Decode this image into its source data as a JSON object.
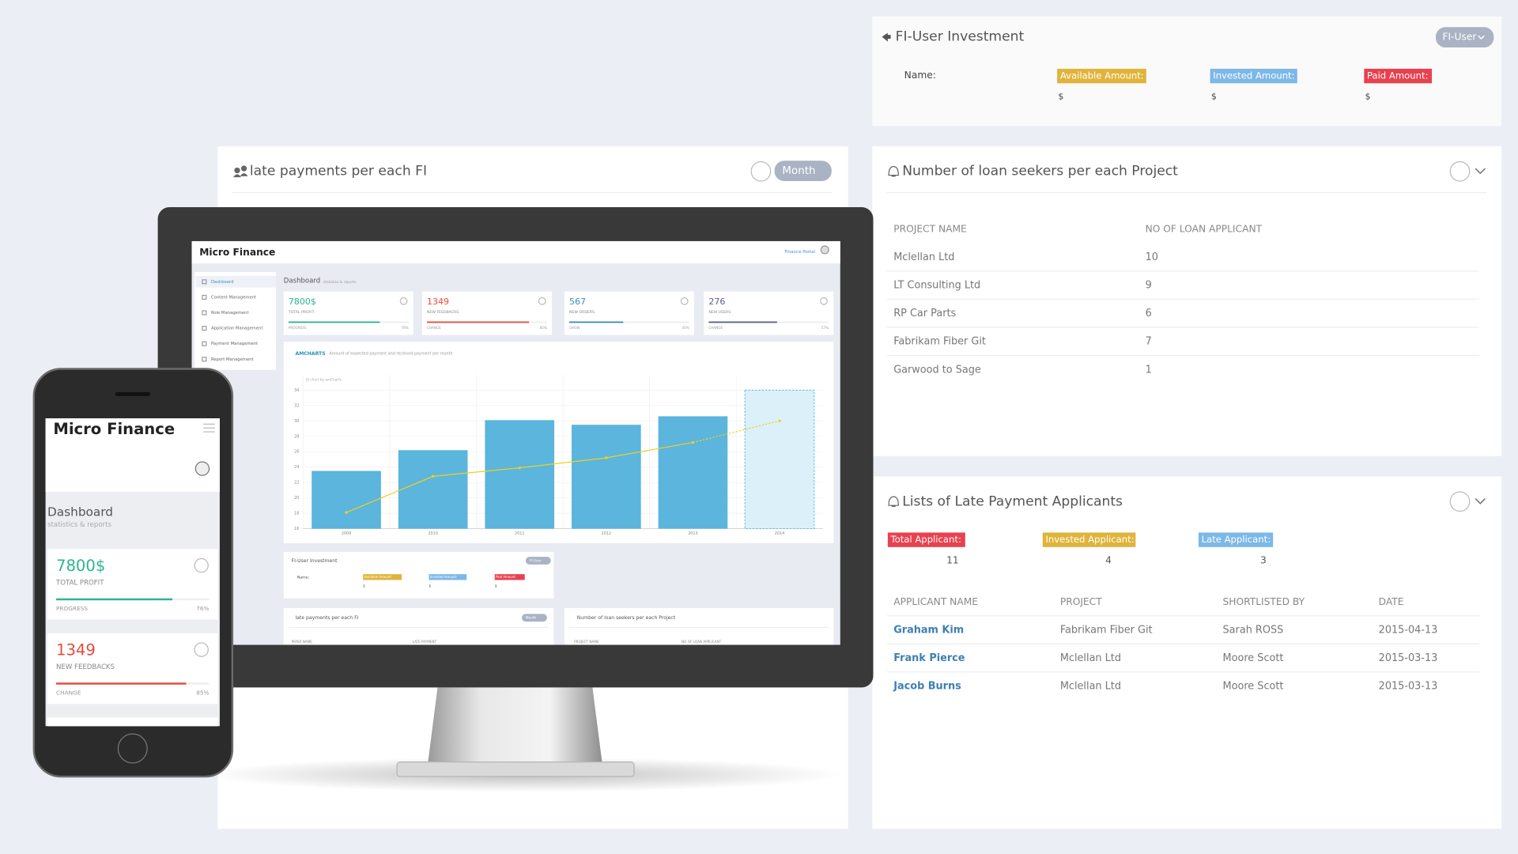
{
  "fi_investment": {
    "title": "FI-User Investment",
    "button": "FI-User",
    "name_label": "Name:",
    "amounts": [
      {
        "label": "Available Amount:",
        "value": "$"
      },
      {
        "label": "Invested Amount:",
        "value": "$"
      },
      {
        "label": "Paid Amount:",
        "value": "$"
      }
    ]
  },
  "late_payments": {
    "title": "late payments per each FI",
    "button": "Month",
    "columns": [
      "PAYER NAME",
      "LATE PAYMENT"
    ]
  },
  "loan_seekers": {
    "title": "Number of loan seekers per each Project",
    "columns": [
      "PROJECT NAME",
      "NO OF LOAN APPLICANT"
    ],
    "rows": [
      [
        "Mclellan Ltd",
        "10"
      ],
      [
        "LT Consulting Ltd",
        "9"
      ],
      [
        "RP Car Parts",
        "6"
      ],
      [
        "Fabrikam Fiber Git",
        "7"
      ],
      [
        "Garwood to Sage",
        "1"
      ]
    ]
  },
  "late_applicants": {
    "title": "Lists of Late Payment Applicants",
    "summary": [
      {
        "label": "Total Applicant:",
        "value": "11"
      },
      {
        "label": "Invested Applicant:",
        "value": "4"
      },
      {
        "label": "Late Applicant:",
        "value": "3"
      }
    ],
    "columns": [
      "APPLICANT NAME",
      "PROJECT",
      "SHORTLISTED BY",
      "DATE"
    ],
    "rows": [
      [
        "Graham Kim",
        "Fabrikam Fiber Git",
        "Sarah ROSS",
        "2015-04-13"
      ],
      [
        "Frank Pierce",
        "Mclellan Ltd",
        "Moore Scott",
        "2015-03-13"
      ],
      [
        "Jacob Burns",
        "Mclellan Ltd",
        "Moore Scott",
        "2015-03-13"
      ]
    ]
  },
  "monitor": {
    "brand": "Micro Finance",
    "portal": "Finance Portal",
    "page": "Dashboard",
    "page_sub": "statistics & reports",
    "menu": [
      "Dashboard",
      "Content Management",
      "Role Management",
      "Application Management",
      "Payment Management",
      "Report Management"
    ],
    "stats": [
      {
        "value": "7800$",
        "label": "TOTAL PROFIT",
        "foot": "PROGRESS",
        "progress": 76,
        "progress_label": "76%",
        "color": "#2bb58f"
      },
      {
        "value": "1349",
        "label": "NEW FEEDBACKS",
        "foot": "CHANGE",
        "progress": 85,
        "progress_label": "85%",
        "color": "#e74c3c"
      },
      {
        "value": "567",
        "label": "NEW ORDERS",
        "foot": "GROW",
        "progress": 45,
        "progress_label": "45%",
        "color": "#3c8dbc"
      },
      {
        "value": "276",
        "label": "NEW USERS",
        "foot": "CHANGE",
        "progress": 57,
        "progress_label": "57%",
        "color": "#5a5f8a"
      }
    ],
    "chart": {
      "type": "bar",
      "title": "AMCHARTS",
      "subtitle": "Amount of expected payment and received payment per month",
      "credit": "JS chart by amCharts",
      "categories": [
        "2009",
        "2010",
        "2011",
        "2012",
        "2013",
        "2014"
      ],
      "series": [
        {
          "type": "bar",
          "color": "#5bb5dc",
          "values": [
            23.5,
            26.2,
            30.1,
            29.5,
            30.6,
            34
          ],
          "dashed": [
            false,
            false,
            false,
            false,
            false,
            true
          ]
        },
        {
          "type": "line",
          "color": "#f0d020",
          "values": [
            18.1,
            22.8,
            23.9,
            25.2,
            27.2,
            30
          ],
          "dashed": [
            false,
            false,
            false,
            false,
            false,
            true
          ]
        }
      ],
      "ylim": [
        16,
        36
      ],
      "yticks": [
        16,
        18,
        20,
        22,
        24,
        26,
        28,
        30,
        32,
        34
      ],
      "grid": true
    }
  }
}
